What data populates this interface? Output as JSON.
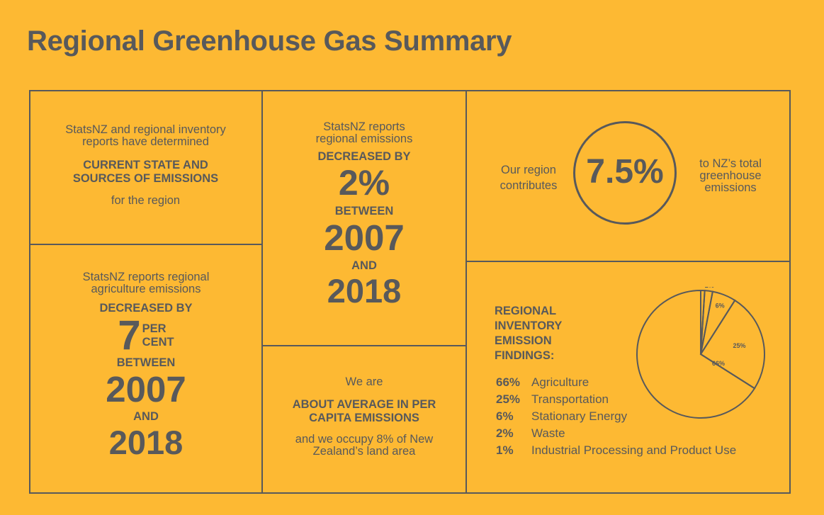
{
  "title": "Regional Greenhouse Gas Summary",
  "box1": {
    "intro": "StatsNZ and regional inventory reports have determined",
    "heading": "CURRENT STATE AND SOURCES OF EMISSIONS",
    "outro": "for the region"
  },
  "box2": {
    "intro": "StatsNZ reports regional emissions",
    "decreased": "DECREASED BY",
    "percent": "2%",
    "between": "BETWEEN",
    "year1": "2007",
    "and": "AND",
    "year2": "2018"
  },
  "box3": {
    "left": "Our region contributes",
    "value": "7.5%",
    "right": "to NZ’s total greenhouse emissions"
  },
  "box4": {
    "intro": "StatsNZ reports regional agriculture emissions",
    "decreased": "DECREASED BY",
    "number": "7",
    "per": "PER",
    "cent": "CENT",
    "between": "BETWEEN",
    "year1": "2007",
    "and": "AND",
    "year2": "2018"
  },
  "box5": {
    "intro": "We are",
    "heading": "ABOUT AVERAGE IN PER CAPITA EMISSIONS",
    "outro": "and we occupy 8% of New Zealand’s land area"
  },
  "box6": {
    "heading": "REGIONAL INVENTORY EMISSION FINDINGS:"
  },
  "chart_data": {
    "type": "pie",
    "title": "REGIONAL INVENTORY EMISSION FINDINGS:",
    "categories": [
      "Agriculture",
      "Transportation",
      "Stationary Energy",
      "Waste",
      "Industrial Processing and Product Use"
    ],
    "values": [
      66,
      25,
      6,
      2,
      1
    ],
    "labels": [
      "66%",
      "25%",
      "6%",
      "2%",
      "1%"
    ],
    "legend": [
      {
        "pct": "66%",
        "label": "Agriculture"
      },
      {
        "pct": "25%",
        "label": "Transportation"
      },
      {
        "pct": "6%",
        "label": "Stationary Energy"
      },
      {
        "pct": "2%",
        "label": "Waste"
      },
      {
        "pct": "1%",
        "label": "Industrial Processing and Product Use"
      }
    ]
  }
}
